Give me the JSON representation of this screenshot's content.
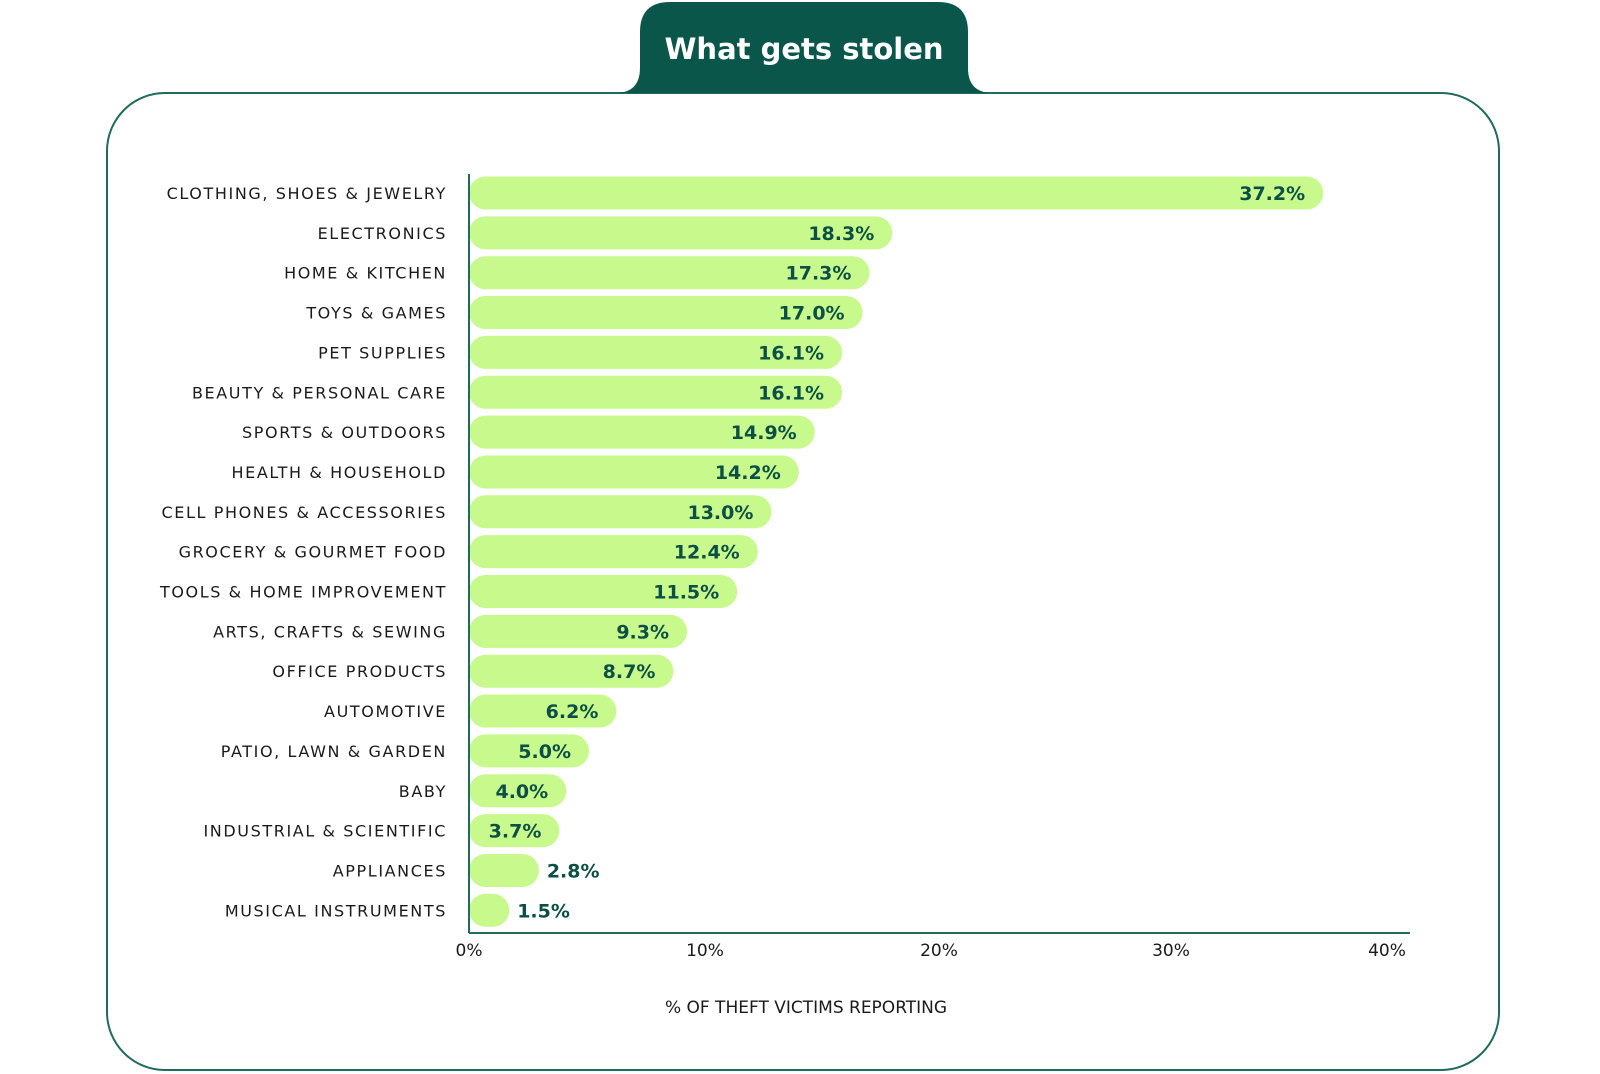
{
  "colors": {
    "bar": "#c7f98c",
    "tab": "#0b564b",
    "frame": "#1f6b5e",
    "value_text": "#0b4f45",
    "axis": "#1f6b5e"
  },
  "header": {
    "title": "What gets stolen"
  },
  "chart_data": {
    "type": "bar",
    "orientation": "horizontal",
    "title": "What gets stolen",
    "xlabel": "% OF THEFT VICTIMS REPORTING",
    "ylabel": "",
    "xlim": [
      0,
      40
    ],
    "xticks": [
      0,
      10,
      20,
      30,
      40
    ],
    "xtick_labels": [
      "0%",
      "10%",
      "20%",
      "30%",
      "40%"
    ],
    "categories": [
      "CLOTHING, SHOES & JEWELRY",
      "ELECTRONICS",
      "HOME & KITCHEN",
      "TOYS & GAMES",
      "PET SUPPLIES",
      "BEAUTY & PERSONAL CARE",
      "SPORTS & OUTDOORS",
      "HEALTH & HOUSEHOLD",
      "CELL PHONES & ACCESSORIES",
      "GROCERY & GOURMET FOOD",
      "TOOLS & HOME IMPROVEMENT",
      "ARTS, CRAFTS & SEWING",
      "OFFICE PRODUCTS",
      "AUTOMOTIVE",
      "PATIO, LAWN & GARDEN",
      "BABY",
      "INDUSTRIAL & SCIENTIFIC",
      "APPLIANCES",
      "MUSICAL INSTRUMENTS"
    ],
    "values": [
      37.2,
      18.3,
      17.3,
      17.0,
      16.1,
      16.1,
      14.9,
      14.2,
      13.0,
      12.4,
      11.5,
      9.3,
      8.7,
      6.2,
      5.0,
      4.0,
      3.7,
      2.8,
      1.5
    ],
    "value_labels": [
      "37.2%",
      "18.3%",
      "17.3%",
      "17.0%",
      "16.1%",
      "16.1%",
      "14.9%",
      "14.2%",
      "13.0%",
      "12.4%",
      "11.5%",
      "9.3%",
      "8.7%",
      "6.2%",
      "5.0%",
      "4.0%",
      "3.7%",
      "2.8%",
      "1.5%"
    ],
    "grid": false,
    "legend": "none"
  }
}
